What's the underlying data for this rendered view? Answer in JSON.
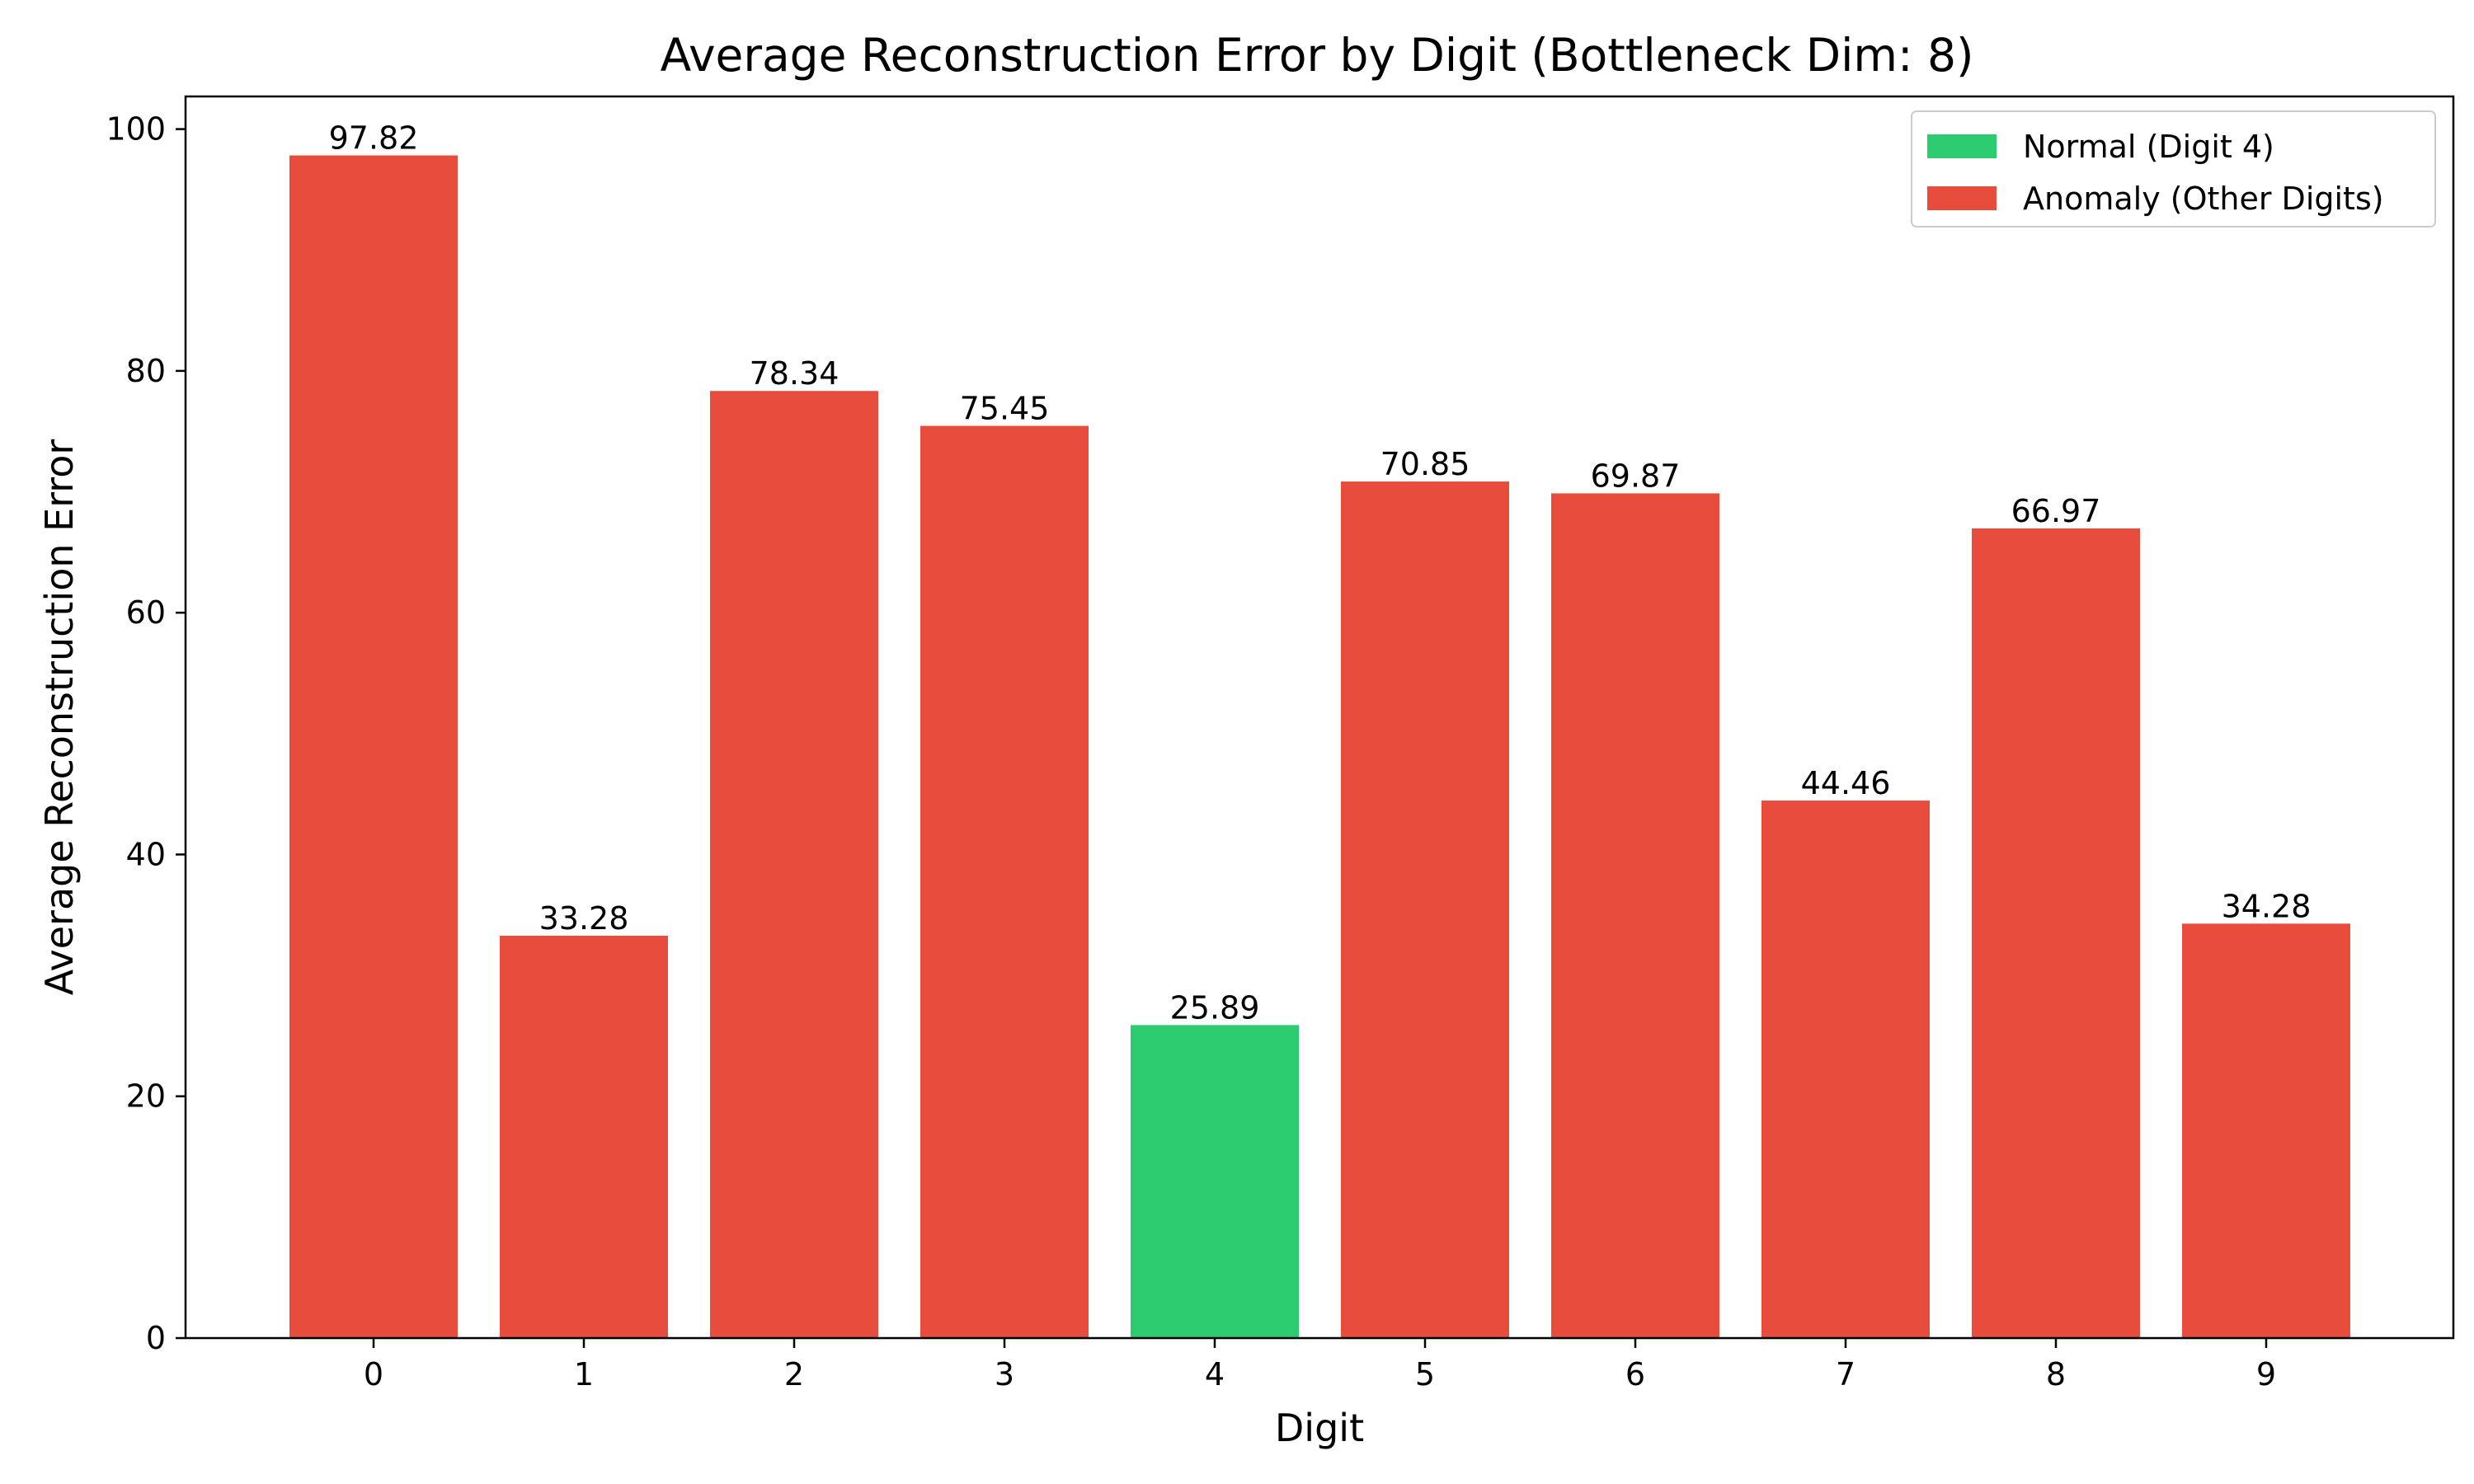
{
  "chart_data": {
    "type": "bar",
    "title": "Average Reconstruction Error by Digit (Bottleneck Dim: 8)",
    "xlabel": "Digit",
    "ylabel": "Average Reconstruction Error",
    "categories": [
      "0",
      "1",
      "2",
      "3",
      "4",
      "5",
      "6",
      "7",
      "8",
      "9"
    ],
    "values": [
      97.82,
      33.28,
      78.34,
      75.45,
      25.89,
      70.85,
      69.87,
      44.46,
      66.97,
      34.28
    ],
    "value_labels": [
      "97.82",
      "33.28",
      "78.34",
      "75.45",
      "25.89",
      "70.85",
      "69.87",
      "44.46",
      "66.97",
      "34.28"
    ],
    "bar_groups": [
      "anomaly",
      "anomaly",
      "anomaly",
      "anomaly",
      "normal",
      "anomaly",
      "anomaly",
      "anomaly",
      "anomaly",
      "anomaly"
    ],
    "ylim": [
      0,
      102.7
    ],
    "yticks": [
      0,
      20,
      40,
      60,
      80,
      100
    ],
    "ytick_labels": [
      "0",
      "20",
      "40",
      "60",
      "80",
      "100"
    ],
    "grid": false,
    "legend": {
      "placement": "top-right",
      "entries": [
        {
          "label": "Normal (Digit 4)",
          "group": "normal"
        },
        {
          "label": "Anomaly (Other Digits)",
          "group": "anomaly"
        }
      ]
    },
    "colors": {
      "normal": "#2ecc71",
      "anomaly": "#e74c3c"
    }
  }
}
